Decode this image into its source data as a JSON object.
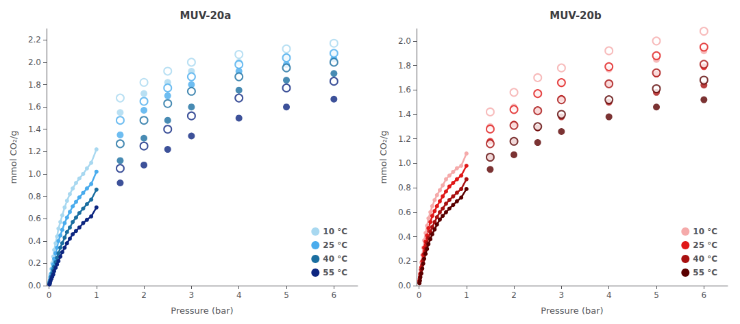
{
  "chart_data": [
    {
      "type": "scatter",
      "title": "MUV-20a",
      "xlabel": "Pressure (bar)",
      "ylabel": "mmol CO₂/g",
      "xlim": [
        -0.05,
        6.5
      ],
      "ylim": [
        0.0,
        2.3
      ],
      "xticks": [
        0,
        1,
        2,
        3,
        4,
        5,
        6
      ],
      "yticks": [
        {
          "value": 0,
          "label": "0.0"
        },
        0.2,
        0.4,
        0.6,
        0.8,
        {
          "value": 1,
          "label": "1.0"
        },
        1.2,
        1.4,
        1.6,
        1.8,
        {
          "value": 2,
          "label": "2.0"
        },
        2.2
      ],
      "grid": false,
      "legend": "lower right",
      "series": [
        {
          "name": "10 °C",
          "color": "#A8D8F0",
          "x": [
            0.01,
            0.02,
            0.03,
            0.05,
            0.07,
            0.09,
            0.11,
            0.14,
            0.17,
            0.2,
            0.24,
            0.28,
            0.33,
            0.38,
            0.44,
            0.5,
            0.57,
            0.64,
            0.72,
            0.8,
            0.89,
            1.0,
            1.5,
            2.0,
            2.5,
            3.0,
            4.0,
            5.0,
            6.0
          ],
          "values": [
            0.04,
            0.07,
            0.1,
            0.15,
            0.2,
            0.26,
            0.32,
            0.38,
            0.44,
            0.51,
            0.57,
            0.63,
            0.7,
            0.76,
            0.82,
            0.87,
            0.92,
            0.96,
            1.0,
            1.05,
            1.1,
            1.22,
            1.55,
            1.72,
            1.82,
            1.92,
            2.0,
            2.05,
            2.08
          ],
          "desorption": {
            "x": [
              1.5,
              2.0,
              2.5,
              3.0,
              4.0,
              5.0,
              6.0
            ],
            "values": [
              1.68,
              1.82,
              1.92,
              2.0,
              2.07,
              2.12,
              2.17
            ]
          }
        },
        {
          "name": "25 °C",
          "color": "#4AACED",
          "x": [
            0.01,
            0.02,
            0.03,
            0.05,
            0.07,
            0.09,
            0.11,
            0.14,
            0.17,
            0.2,
            0.24,
            0.28,
            0.33,
            0.38,
            0.44,
            0.5,
            0.57,
            0.64,
            0.72,
            0.8,
            0.89,
            1.0,
            1.5,
            2.0,
            2.5,
            3.0,
            4.0,
            5.0,
            6.0
          ],
          "values": [
            0.03,
            0.05,
            0.08,
            0.11,
            0.15,
            0.19,
            0.24,
            0.29,
            0.34,
            0.4,
            0.45,
            0.5,
            0.56,
            0.61,
            0.66,
            0.71,
            0.75,
            0.79,
            0.83,
            0.87,
            0.91,
            1.02,
            1.35,
            1.57,
            1.7,
            1.8,
            1.92,
            1.98,
            2.03
          ],
          "desorption": {
            "x": [
              1.5,
              2.0,
              2.5,
              3.0,
              4.0,
              5.0,
              6.0
            ],
            "values": [
              1.48,
              1.65,
              1.77,
              1.87,
              1.98,
              2.04,
              2.08
            ]
          }
        },
        {
          "name": "40 °C",
          "color": "#1A6EA0",
          "x": [
            0.01,
            0.02,
            0.03,
            0.05,
            0.07,
            0.09,
            0.11,
            0.14,
            0.17,
            0.2,
            0.24,
            0.28,
            0.33,
            0.38,
            0.44,
            0.5,
            0.57,
            0.64,
            0.72,
            0.8,
            0.89,
            1.0,
            1.5,
            2.0,
            2.5,
            3.0,
            4.0,
            5.0,
            6.0
          ],
          "values": [
            0.02,
            0.03,
            0.05,
            0.08,
            0.11,
            0.14,
            0.17,
            0.21,
            0.25,
            0.29,
            0.34,
            0.38,
            0.43,
            0.48,
            0.52,
            0.57,
            0.61,
            0.65,
            0.69,
            0.73,
            0.77,
            0.86,
            1.12,
            1.32,
            1.48,
            1.6,
            1.75,
            1.84,
            1.9
          ],
          "desorption": {
            "x": [
              1.5,
              2.0,
              2.5,
              3.0,
              4.0,
              5.0,
              6.0
            ],
            "values": [
              1.27,
              1.48,
              1.63,
              1.74,
              1.87,
              1.95,
              2.0
            ]
          }
        },
        {
          "name": "55 °C",
          "color": "#0D2680",
          "x": [
            0.01,
            0.02,
            0.03,
            0.05,
            0.07,
            0.09,
            0.11,
            0.14,
            0.17,
            0.2,
            0.24,
            0.28,
            0.33,
            0.38,
            0.44,
            0.5,
            0.57,
            0.64,
            0.72,
            0.8,
            0.89,
            1.0,
            1.5,
            2.0,
            2.5,
            3.0,
            4.0,
            5.0,
            6.0
          ],
          "values": [
            0.01,
            0.02,
            0.04,
            0.06,
            0.08,
            0.1,
            0.13,
            0.16,
            0.19,
            0.22,
            0.26,
            0.3,
            0.34,
            0.38,
            0.42,
            0.46,
            0.49,
            0.52,
            0.56,
            0.59,
            0.62,
            0.7,
            0.92,
            1.08,
            1.22,
            1.34,
            1.5,
            1.6,
            1.67
          ],
          "desorption": {
            "x": [
              1.5,
              2.0,
              2.5,
              3.0,
              4.0,
              5.0,
              6.0
            ],
            "values": [
              1.05,
              1.25,
              1.4,
              1.52,
              1.68,
              1.77,
              1.83
            ]
          }
        }
      ]
    },
    {
      "type": "scatter",
      "title": "MUV-20b",
      "xlabel": "Pressure (bar)",
      "ylabel": "mmol CO₂/g",
      "xlim": [
        -0.05,
        6.5
      ],
      "ylim": [
        0.0,
        2.1
      ],
      "xticks": [
        0,
        1,
        2,
        3,
        4,
        5,
        6
      ],
      "yticks": [
        {
          "value": 0,
          "label": "0.0"
        },
        0.2,
        0.4,
        0.6,
        0.8,
        {
          "value": 1,
          "label": "1.0"
        },
        1.2,
        1.4,
        1.6,
        1.8,
        {
          "value": 2,
          "label": "2.0"
        }
      ],
      "grid": false,
      "legend": "lower right",
      "series": [
        {
          "name": "10 °C",
          "color": "#F5AAAA",
          "x": [
            0.01,
            0.02,
            0.03,
            0.05,
            0.07,
            0.09,
            0.11,
            0.14,
            0.17,
            0.2,
            0.24,
            0.28,
            0.33,
            0.38,
            0.44,
            0.5,
            0.57,
            0.64,
            0.72,
            0.8,
            0.89,
            1.0,
            1.5,
            2.0,
            2.5,
            3.0,
            4.0,
            5.0,
            6.0
          ],
          "values": [
            0.05,
            0.09,
            0.13,
            0.19,
            0.25,
            0.31,
            0.37,
            0.43,
            0.49,
            0.55,
            0.6,
            0.65,
            0.7,
            0.74,
            0.78,
            0.82,
            0.87,
            0.9,
            0.93,
            0.96,
            0.98,
            1.08,
            1.3,
            1.46,
            1.57,
            1.65,
            1.77,
            1.85,
            1.92
          ],
          "desorption": {
            "x": [
              1.5,
              2.0,
              2.5,
              3.0,
              4.0,
              5.0,
              6.0
            ],
            "values": [
              1.42,
              1.58,
              1.7,
              1.78,
              1.92,
              2.0,
              2.08
            ]
          }
        },
        {
          "name": "25 °C",
          "color": "#E01818",
          "x": [
            0.01,
            0.02,
            0.03,
            0.05,
            0.07,
            0.09,
            0.11,
            0.14,
            0.17,
            0.2,
            0.24,
            0.28,
            0.33,
            0.38,
            0.44,
            0.5,
            0.57,
            0.64,
            0.72,
            0.8,
            0.89,
            1.0,
            1.5,
            2.0,
            2.5,
            3.0,
            4.0,
            5.0,
            6.0
          ],
          "values": [
            0.04,
            0.07,
            0.1,
            0.15,
            0.2,
            0.25,
            0.31,
            0.36,
            0.41,
            0.47,
            0.52,
            0.57,
            0.61,
            0.65,
            0.69,
            0.73,
            0.77,
            0.81,
            0.84,
            0.87,
            0.9,
            0.98,
            1.18,
            1.32,
            1.43,
            1.53,
            1.65,
            1.73,
            1.79
          ],
          "desorption": {
            "x": [
              1.5,
              2.0,
              2.5,
              3.0,
              4.0,
              5.0,
              6.0
            ],
            "values": [
              1.28,
              1.44,
              1.57,
              1.66,
              1.79,
              1.88,
              1.95
            ]
          }
        },
        {
          "name": "40 °C",
          "color": "#A81010",
          "x": [
            0.01,
            0.02,
            0.03,
            0.05,
            0.07,
            0.09,
            0.11,
            0.14,
            0.17,
            0.2,
            0.24,
            0.28,
            0.33,
            0.38,
            0.44,
            0.5,
            0.57,
            0.64,
            0.72,
            0.8,
            0.89,
            1.0,
            1.5,
            2.0,
            2.5,
            3.0,
            4.0,
            5.0,
            6.0
          ],
          "values": [
            0.03,
            0.06,
            0.09,
            0.13,
            0.17,
            0.21,
            0.26,
            0.3,
            0.35,
            0.39,
            0.44,
            0.48,
            0.52,
            0.56,
            0.6,
            0.63,
            0.67,
            0.7,
            0.73,
            0.76,
            0.79,
            0.87,
            1.05,
            1.18,
            1.29,
            1.38,
            1.5,
            1.58,
            1.64
          ],
          "desorption": {
            "x": [
              1.5,
              2.0,
              2.5,
              3.0,
              4.0,
              5.0,
              6.0
            ],
            "values": [
              1.16,
              1.31,
              1.43,
              1.52,
              1.65,
              1.74,
              1.81
            ]
          }
        },
        {
          "name": "55 °C",
          "color": "#5A0000",
          "x": [
            0.01,
            0.02,
            0.03,
            0.05,
            0.07,
            0.09,
            0.11,
            0.14,
            0.17,
            0.2,
            0.24,
            0.28,
            0.33,
            0.38,
            0.44,
            0.5,
            0.57,
            0.64,
            0.72,
            0.8,
            0.89,
            1.0,
            1.5,
            2.0,
            2.5,
            3.0,
            4.0,
            5.0,
            6.0
          ],
          "values": [
            0.02,
            0.04,
            0.07,
            0.1,
            0.14,
            0.18,
            0.22,
            0.26,
            0.3,
            0.34,
            0.38,
            0.42,
            0.46,
            0.5,
            0.54,
            0.57,
            0.6,
            0.63,
            0.66,
            0.69,
            0.72,
            0.79,
            0.95,
            1.07,
            1.17,
            1.26,
            1.38,
            1.46,
            1.52
          ],
          "desorption": {
            "x": [
              1.5,
              2.0,
              2.5,
              3.0,
              4.0,
              5.0,
              6.0
            ],
            "values": [
              1.05,
              1.18,
              1.3,
              1.4,
              1.52,
              1.61,
              1.68
            ]
          }
        }
      ]
    }
  ]
}
